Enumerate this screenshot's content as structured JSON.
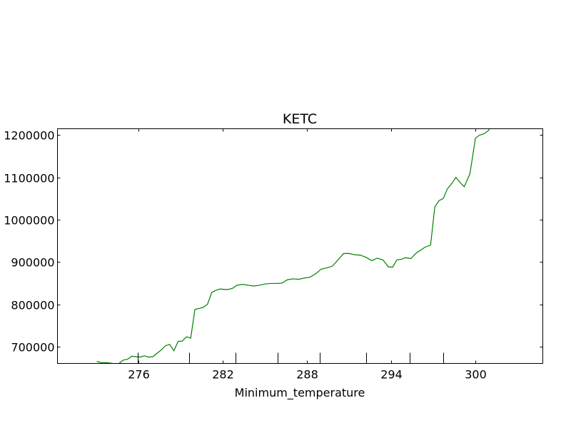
{
  "chart_data": {
    "type": "line",
    "title": "KETC",
    "xlabel": "Minimum_temperature",
    "ylabel": "",
    "xlim": [
      270.2,
      304.8
    ],
    "ylim": [
      660000,
      1215000
    ],
    "grid": false,
    "x_ticks": [
      276,
      282,
      288,
      294,
      300
    ],
    "x_tick_labels": [
      "276",
      "282",
      "288",
      "294",
      "300"
    ],
    "y_ticks": [
      700000,
      800000,
      900000,
      1000000,
      1100000,
      1200000
    ],
    "y_tick_labels": [
      "700000",
      "800000",
      "900000",
      "1000000",
      "1100000",
      "1200000"
    ],
    "bottom_extra_ticks": [
      275.9,
      279.6,
      282.9,
      285.9,
      288.9,
      292.2,
      295.3,
      297.7
    ],
    "series": [
      {
        "color": "#008000",
        "x": [
          273.0,
          273.3,
          273.7,
          274.1,
          274.5,
          274.9,
          275.2,
          275.5,
          275.8,
          276.1,
          276.4,
          276.7,
          277.0,
          277.3,
          277.6,
          277.9,
          278.2,
          278.5,
          278.8,
          279.1,
          279.4,
          279.7,
          280.0,
          280.3,
          280.6,
          280.9,
          281.2,
          281.5,
          281.8,
          282.1,
          282.4,
          282.7,
          283.0,
          283.4,
          283.8,
          284.2,
          284.6,
          285.0,
          285.4,
          285.8,
          286.2,
          286.6,
          287.0,
          287.4,
          287.8,
          288.2,
          288.6,
          289.0,
          289.4,
          289.8,
          290.2,
          290.6,
          291.0,
          291.4,
          291.8,
          292.2,
          292.6,
          293.0,
          293.4,
          293.8,
          294.1,
          294.4,
          294.7,
          295.0,
          295.4,
          295.8,
          296.1,
          296.4,
          296.8,
          297.1,
          297.4,
          297.7,
          298.0,
          298.3,
          298.6,
          298.9,
          299.2,
          299.6,
          300.0,
          300.3,
          300.6,
          300.9,
          301.1
        ],
        "y": [
          665000,
          662000,
          662000,
          660000,
          658000,
          668000,
          670000,
          677000,
          676000,
          675000,
          678000,
          675000,
          676000,
          684000,
          692000,
          702000,
          705000,
          690000,
          712000,
          713000,
          723000,
          720000,
          788000,
          790000,
          793000,
          800000,
          828000,
          833000,
          836000,
          835000,
          835000,
          838000,
          845000,
          847000,
          845000,
          843000,
          845000,
          848000,
          849000,
          849000,
          850000,
          858000,
          860000,
          859000,
          862000,
          864000,
          872000,
          883000,
          886000,
          890000,
          905000,
          920000,
          920000,
          917000,
          916000,
          911000,
          903000,
          909000,
          905000,
          888000,
          888000,
          905000,
          906000,
          910000,
          908000,
          922000,
          928000,
          935000,
          940000,
          1030000,
          1045000,
          1050000,
          1073000,
          1085000,
          1100000,
          1088000,
          1078000,
          1108000,
          1193000,
          1200000,
          1203000,
          1210000,
          1220000
        ]
      }
    ]
  }
}
